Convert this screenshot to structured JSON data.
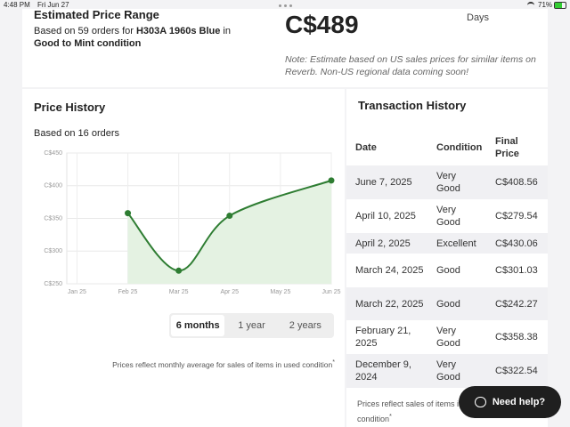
{
  "status_bar": {
    "time": "4:48 PM",
    "date": "Fri Jun 27",
    "battery": "71%"
  },
  "estimate": {
    "title": "Estimated Price Range",
    "based_on": "Based on 59 orders for",
    "item": "H303A 1960s Blue",
    "in": "in",
    "condition": "Good to Mint condition",
    "price": "C$489",
    "days": "Days",
    "note": "Note: Estimate based on US sales prices for similar items on Reverb. Non-US regional data coming soon!"
  },
  "price_history": {
    "title": "Price History",
    "subtitle": "Based on 16 orders",
    "ranges": [
      "6 months",
      "1 year",
      "2 years"
    ],
    "selected_range": 0,
    "footnote": "Prices reflect monthly average for sales of items in used condition",
    "footnote_mark": "*"
  },
  "chart_data": {
    "type": "line",
    "x": [
      1,
      2,
      3,
      5
    ],
    "xlim": [
      -0.2,
      5
    ],
    "xticks": [
      {
        "value": 0,
        "label": "Jan 25"
      },
      {
        "value": 1,
        "label": "Feb 25"
      },
      {
        "value": 2,
        "label": "Mar 25"
      },
      {
        "value": 3,
        "label": "Apr 25"
      },
      {
        "value": 4,
        "label": "May 25"
      },
      {
        "value": 5,
        "label": "Jun 25"
      }
    ],
    "ylim": [
      250,
      450
    ],
    "yticks": [
      {
        "value": 250,
        "label": "C$250"
      },
      {
        "value": 300,
        "label": "C$300"
      },
      {
        "value": 350,
        "label": "C$350"
      },
      {
        "value": 400,
        "label": "C$400"
      },
      {
        "value": 450,
        "label": "C$450"
      }
    ],
    "grid": true,
    "series": [
      {
        "color": "#2e7d32",
        "fill": "#e4f2e2",
        "values": [
          358,
          270,
          354,
          408
        ]
      }
    ]
  },
  "transactions": {
    "title": "Transaction History",
    "columns": [
      "Date",
      "Condition",
      "Final Price"
    ],
    "rows": [
      [
        "June 7, 2025",
        "Very Good",
        "C$408.56"
      ],
      [
        "April 10, 2025",
        "Very Good",
        "C$279.54"
      ],
      [
        "April 2, 2025",
        "Excellent",
        "C$430.06"
      ],
      [
        "March 24, 2025",
        "Good",
        "C$301.03"
      ],
      [
        "March 22, 2025",
        "Good",
        "C$242.27"
      ],
      [
        "February 21, 2025",
        "Very Good",
        "C$358.38"
      ],
      [
        "December 9, 2024",
        "Very Good",
        "C$322.54"
      ]
    ],
    "footnote": "Prices reflect sales of items in used condition",
    "footnote_mark": "*"
  },
  "help_button": "Need help?"
}
